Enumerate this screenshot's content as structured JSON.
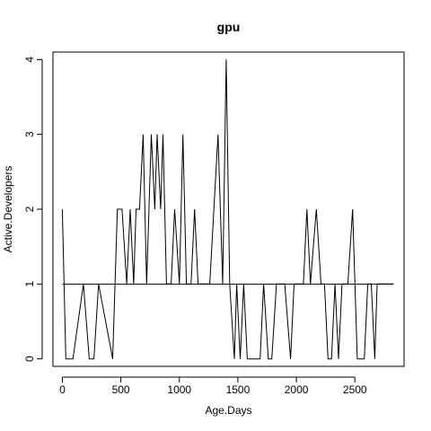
{
  "chart_data": {
    "type": "line",
    "title": "gpu",
    "xlabel": "Age.Days",
    "ylabel": "Active.Developers",
    "xlim": [
      -80,
      2920
    ],
    "ylim": [
      -0.1,
      4.1
    ],
    "x_ticks": [
      0,
      500,
      1000,
      1500,
      2000,
      2500
    ],
    "y_ticks": [
      0,
      1,
      2,
      3,
      4
    ],
    "x_tick_labels": [
      "0",
      "500",
      "1000",
      "1500",
      "2000",
      "2500"
    ],
    "y_tick_labels": [
      "0",
      "1",
      "2",
      "3",
      "4"
    ],
    "grid": false,
    "legend": "none",
    "reference_line": {
      "y": 1,
      "x_start": 0,
      "x_end": 2830
    },
    "series": [
      {
        "color": "#000000",
        "x": [
          0,
          30,
          90,
          180,
          230,
          270,
          310,
          430,
          470,
          510,
          550,
          580,
          610,
          630,
          660,
          690,
          720,
          760,
          790,
          810,
          840,
          860,
          890,
          930,
          960,
          1000,
          1030,
          1060,
          1100,
          1130,
          1160,
          1190,
          1220,
          1260,
          1330,
          1370,
          1400,
          1430,
          1470,
          1490,
          1520,
          1550,
          1580,
          1620,
          1690,
          1720,
          1760,
          1790,
          1830,
          1870,
          1900,
          1950,
          1980,
          2010,
          2060,
          2090,
          2120,
          2170,
          2210,
          2240,
          2270,
          2300,
          2330,
          2360,
          2390,
          2410,
          2440,
          2480,
          2520,
          2550,
          2580,
          2610,
          2640,
          2670,
          2690,
          2720,
          2750,
          2780,
          2830
        ],
        "y": [
          2,
          0,
          0,
          1,
          0,
          0,
          1,
          0,
          2,
          2,
          1,
          2,
          1,
          2,
          2,
          3,
          1,
          3,
          2,
          3,
          2,
          3,
          1,
          1,
          2,
          1,
          3,
          1,
          1,
          2,
          1,
          1,
          1,
          1,
          3,
          1,
          4,
          1,
          0,
          1,
          0,
          1,
          0,
          0,
          0,
          1,
          0,
          0,
          1,
          1,
          1,
          0,
          1,
          1,
          1,
          2,
          1,
          2,
          1,
          1,
          0,
          0,
          1,
          0,
          1,
          1,
          1,
          2,
          0,
          0,
          0,
          1,
          1,
          0,
          1,
          1,
          1,
          1,
          1
        ]
      }
    ]
  }
}
